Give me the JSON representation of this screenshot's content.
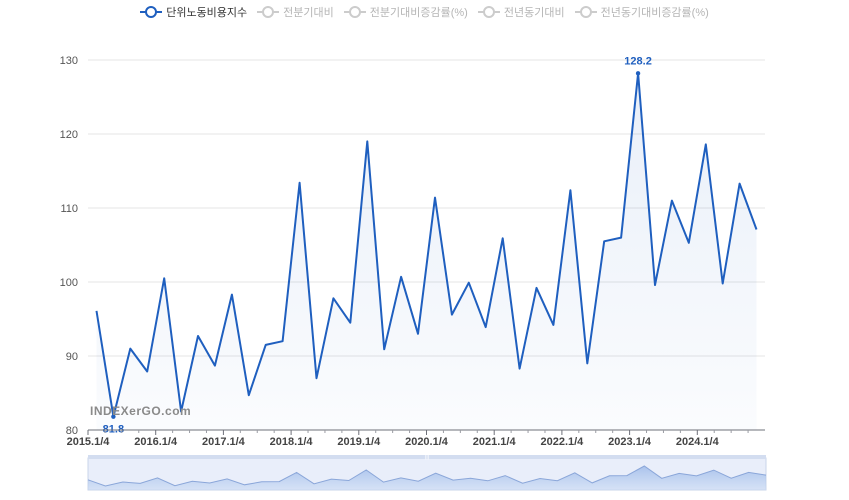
{
  "legend": [
    {
      "label": "단위노동비용지수",
      "active": true,
      "color": "#1f5fbf"
    },
    {
      "label": "전분기대비",
      "active": false,
      "color": "#cccccc"
    },
    {
      "label": "전분기대비증감률(%)",
      "active": false,
      "color": "#cccccc"
    },
    {
      "label": "전년동기대비",
      "active": false,
      "color": "#cccccc"
    },
    {
      "label": "전년동기대비증감률(%)",
      "active": false,
      "color": "#cccccc"
    }
  ],
  "watermark": "INDEXerGO.com",
  "chart_data": {
    "type": "line",
    "series": [
      {
        "name": "단위노동비용지수",
        "color": "#1f5fbf",
        "values": [
          96.1,
          81.8,
          91.0,
          87.9,
          100.5,
          82.5,
          92.7,
          88.7,
          98.3,
          84.7,
          91.5,
          92.0,
          113.4,
          87.0,
          97.8,
          94.5,
          119.0,
          90.9,
          100.7,
          93.0,
          111.4,
          95.6,
          99.9,
          93.9,
          105.9,
          88.3,
          99.2,
          94.2,
          112.4,
          89.0,
          105.5,
          106.0,
          128.2,
          99.6,
          111.0,
          105.3,
          118.6,
          99.8,
          113.3,
          107.1
        ]
      }
    ],
    "x_start_year": 2015,
    "x_tick_labels": [
      "2015.1/4",
      "2016.1/4",
      "2017.1/4",
      "2018.1/4",
      "2019.1/4",
      "2020.1/4",
      "2021.1/4",
      "2022.1/4",
      "2023.1/4",
      "2024.1/4"
    ],
    "y_ticks": [
      80,
      90,
      100,
      110,
      120,
      130
    ],
    "ylim": [
      80,
      130
    ],
    "data_labels": [
      {
        "index": 1,
        "text": "81.8",
        "position": "below"
      },
      {
        "index": 32,
        "text": "128.2",
        "position": "above"
      }
    ],
    "grid": true,
    "legend_placement": "top-center",
    "area_fill": true,
    "data_zoom_slider": true
  }
}
